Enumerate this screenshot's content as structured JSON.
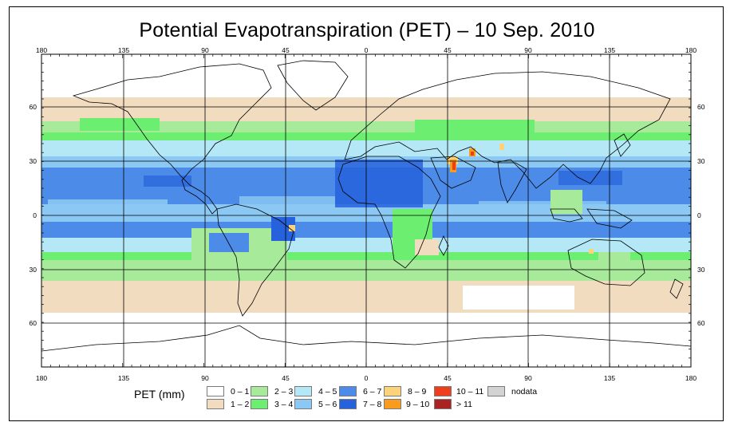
{
  "title": "Potential Evapotranspiration (PET) – 10 Sep. 2010",
  "map": {
    "longitude_labels": [
      "180",
      "135",
      "90",
      "45",
      "0",
      "45",
      "90",
      "135",
      "180"
    ],
    "latitude_labels": [
      "60",
      "30",
      "0",
      "30",
      "60"
    ]
  },
  "legend": {
    "label": "PET (mm)",
    "classes": [
      {
        "range": "0 – 1",
        "color": "#ffffff"
      },
      {
        "range": "1 – 2",
        "color": "#f1dcc0"
      },
      {
        "range": "2 – 3",
        "color": "#a6ea9a"
      },
      {
        "range": "3 – 4",
        "color": "#6cef70"
      },
      {
        "range": "4 – 5",
        "color": "#b4e8f6"
      },
      {
        "range": "5 – 6",
        "color": "#8cc8f4"
      },
      {
        "range": "6 – 7",
        "color": "#4c8ce8"
      },
      {
        "range": "7 – 8",
        "color": "#2662dc"
      },
      {
        "range": "8 – 9",
        "color": "#fcd27a"
      },
      {
        "range": "9 – 10",
        "color": "#f79c1c"
      },
      {
        "range": "10 – 11",
        "color": "#ee3e1e"
      },
      {
        "range": "> 11",
        "color": "#ab2222"
      },
      {
        "range": "nodata",
        "color": "#d3d3d3"
      }
    ]
  }
}
